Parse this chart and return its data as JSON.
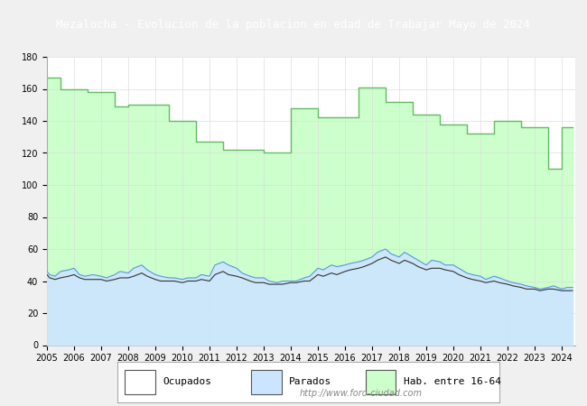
{
  "title": "Mezalocha - Evolucion de la poblacion en edad de Trabajar Mayo de 2024",
  "title_bg": "#4472c4",
  "title_color": "white",
  "xlabel": "",
  "ylabel": "",
  "ylim": [
    0,
    180
  ],
  "yticks": [
    0,
    20,
    40,
    60,
    80,
    100,
    120,
    140,
    160,
    180
  ],
  "years": [
    2005,
    2006,
    2007,
    2008,
    2009,
    2010,
    2011,
    2012,
    2013,
    2014,
    2015,
    2016,
    2017,
    2018,
    2019,
    2020,
    2021,
    2022,
    2023,
    2024
  ],
  "hab_16_64": [
    [
      2005.0,
      167
    ],
    [
      2005.5,
      167
    ],
    [
      2006.0,
      160
    ],
    [
      2006.5,
      160
    ],
    [
      2007.0,
      158
    ],
    [
      2007.5,
      158
    ],
    [
      2008.0,
      149
    ],
    [
      2008.5,
      150
    ],
    [
      2009.0,
      150
    ],
    [
      2009.5,
      150
    ],
    [
      2010.0,
      140
    ],
    [
      2010.5,
      140
    ],
    [
      2011.0,
      127
    ],
    [
      2011.5,
      127
    ],
    [
      2012.0,
      122
    ],
    [
      2012.5,
      122
    ],
    [
      2013.0,
      122
    ],
    [
      2013.5,
      120
    ],
    [
      2014.0,
      120
    ],
    [
      2014.5,
      148
    ],
    [
      2015.0,
      148
    ],
    [
      2015.5,
      142
    ],
    [
      2016.0,
      142
    ],
    [
      2016.5,
      142
    ],
    [
      2017.0,
      161
    ],
    [
      2017.5,
      161
    ],
    [
      2018.0,
      152
    ],
    [
      2018.5,
      152
    ],
    [
      2019.0,
      144
    ],
    [
      2019.5,
      144
    ],
    [
      2020.0,
      138
    ],
    [
      2020.5,
      138
    ],
    [
      2021.0,
      132
    ],
    [
      2021.5,
      132
    ],
    [
      2022.0,
      140
    ],
    [
      2022.5,
      140
    ],
    [
      2023.0,
      136
    ],
    [
      2023.5,
      136
    ],
    [
      2024.0,
      110
    ],
    [
      2024.4,
      136
    ]
  ],
  "parados_x": [
    2005.0,
    2005.1,
    2005.3,
    2005.5,
    2005.8,
    2006.0,
    2006.2,
    2006.4,
    2006.7,
    2007.0,
    2007.2,
    2007.5,
    2007.7,
    2008.0,
    2008.2,
    2008.5,
    2008.7,
    2009.0,
    2009.2,
    2009.5,
    2009.7,
    2010.0,
    2010.2,
    2010.5,
    2010.7,
    2011.0,
    2011.2,
    2011.5,
    2011.7,
    2012.0,
    2012.2,
    2012.5,
    2012.7,
    2013.0,
    2013.2,
    2013.5,
    2013.7,
    2014.0,
    2014.2,
    2014.5,
    2014.7,
    2015.0,
    2015.2,
    2015.5,
    2015.7,
    2016.0,
    2016.2,
    2016.5,
    2016.7,
    2017.0,
    2017.2,
    2017.5,
    2017.7,
    2018.0,
    2018.2,
    2018.5,
    2018.7,
    2019.0,
    2019.2,
    2019.5,
    2019.7,
    2020.0,
    2020.2,
    2020.5,
    2020.7,
    2021.0,
    2021.2,
    2021.5,
    2021.7,
    2022.0,
    2022.2,
    2022.5,
    2022.7,
    2023.0,
    2023.2,
    2023.5,
    2023.7,
    2024.0,
    2024.2,
    2024.4
  ],
  "parados_y": [
    46,
    44,
    43,
    46,
    47,
    48,
    44,
    43,
    44,
    43,
    42,
    44,
    46,
    45,
    48,
    50,
    47,
    44,
    43,
    42,
    42,
    41,
    42,
    42,
    44,
    43,
    50,
    52,
    50,
    48,
    45,
    43,
    42,
    42,
    40,
    39,
    40,
    40,
    40,
    42,
    43,
    48,
    47,
    50,
    49,
    50,
    51,
    52,
    53,
    55,
    58,
    60,
    57,
    55,
    58,
    55,
    53,
    50,
    53,
    52,
    50,
    50,
    48,
    45,
    44,
    43,
    41,
    43,
    42,
    40,
    39,
    38,
    37,
    36,
    35,
    36,
    37,
    35,
    36,
    36
  ],
  "ocupados_x": [
    2005.0,
    2005.1,
    2005.3,
    2005.5,
    2005.8,
    2006.0,
    2006.2,
    2006.4,
    2006.7,
    2007.0,
    2007.2,
    2007.5,
    2007.7,
    2008.0,
    2008.2,
    2008.5,
    2008.7,
    2009.0,
    2009.2,
    2009.5,
    2009.7,
    2010.0,
    2010.2,
    2010.5,
    2010.7,
    2011.0,
    2011.2,
    2011.5,
    2011.7,
    2012.0,
    2012.2,
    2012.5,
    2012.7,
    2013.0,
    2013.2,
    2013.5,
    2013.7,
    2014.0,
    2014.2,
    2014.5,
    2014.7,
    2015.0,
    2015.2,
    2015.5,
    2015.7,
    2016.0,
    2016.2,
    2016.5,
    2016.7,
    2017.0,
    2017.2,
    2017.5,
    2017.7,
    2018.0,
    2018.2,
    2018.5,
    2018.7,
    2019.0,
    2019.2,
    2019.5,
    2019.7,
    2020.0,
    2020.2,
    2020.5,
    2020.7,
    2021.0,
    2021.2,
    2021.5,
    2021.7,
    2022.0,
    2022.2,
    2022.5,
    2022.7,
    2023.0,
    2023.2,
    2023.5,
    2023.7,
    2024.0,
    2024.2,
    2024.4
  ],
  "ocupados_y": [
    44,
    42,
    41,
    42,
    43,
    44,
    42,
    41,
    41,
    41,
    40,
    41,
    42,
    42,
    43,
    45,
    43,
    41,
    40,
    40,
    40,
    39,
    40,
    40,
    41,
    40,
    44,
    46,
    44,
    43,
    42,
    40,
    39,
    39,
    38,
    38,
    38,
    39,
    39,
    40,
    40,
    44,
    43,
    45,
    44,
    46,
    47,
    48,
    49,
    51,
    53,
    55,
    53,
    51,
    53,
    51,
    49,
    47,
    48,
    48,
    47,
    46,
    44,
    42,
    41,
    40,
    39,
    40,
    39,
    38,
    37,
    36,
    35,
    35,
    34,
    35,
    35,
    34,
    34,
    34
  ],
  "color_hab": "#ccffcc",
  "color_hab_line": "#66bb66",
  "color_parados_fill": "#cce5ff",
  "color_parados_line": "#5599dd",
  "color_ocupados_line": "#333333",
  "grid_color": "#dddddd",
  "bg_color": "#f0f0f0",
  "plot_bg": "#ffffff",
  "watermark": "http://www.foro-ciudad.com",
  "legend_labels": [
    "Ocupados",
    "Parados",
    "Hab. entre 16-64"
  ],
  "xtick_years": [
    2005,
    2006,
    2007,
    2008,
    2009,
    2010,
    2011,
    2012,
    2013,
    2014,
    2015,
    2016,
    2017,
    2018,
    2019,
    2020,
    2021,
    2022,
    2023,
    2024
  ]
}
